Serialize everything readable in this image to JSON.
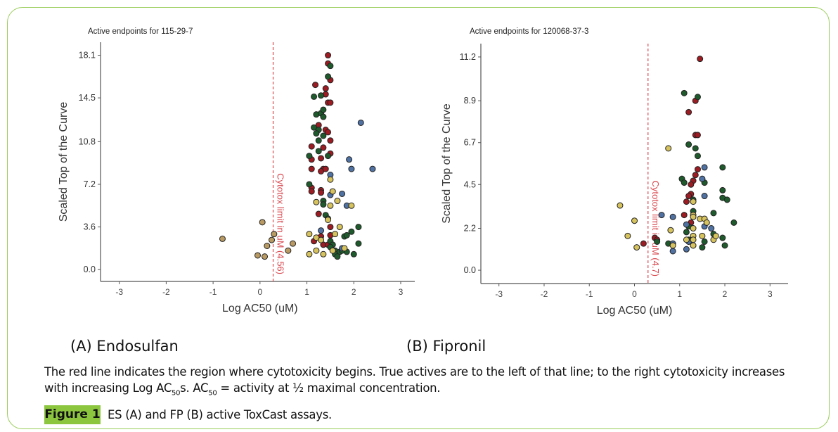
{
  "panels": {
    "a_label": "(A) Endosulfan",
    "b_label": "(B) Fipronil"
  },
  "caption": {
    "line1": "The red line indicates the region where cytotoxicity begins. True actives are to the left of that line; to the right cytotoxicity increases",
    "line2_a": "with increasing Log AC",
    "sub1": "50",
    "line2_b": "s. AC",
    "sub2": "50",
    "line2_c": " = activity at ½ maximal concentration."
  },
  "figure": {
    "badge": "Figure 1",
    "text": "ES (A) and FP (B) active ToxCast assays."
  },
  "colors": {
    "r": "#9b1c22",
    "g": "#1f5a2c",
    "b": "#4f72a3",
    "y": "#d7c35e",
    "t": "#b89a62",
    "cytotox": "#d9484f",
    "accent": "#8cc63f"
  },
  "chart_data": [
    {
      "type": "scatter",
      "title": "Active endpoints for 115-29-7",
      "xlabel": "Log AC50 (uM)",
      "ylabel": "Scaled Top of the Curve",
      "xlim": [
        -3.4,
        3.3
      ],
      "ylim": [
        -1.0,
        19.2
      ],
      "xticks": [
        -3,
        -2,
        -1,
        0,
        1,
        2,
        3
      ],
      "xtick_labels": [
        "-3",
        "-2",
        "-1",
        "0",
        "1",
        "2",
        "3"
      ],
      "yticks": [
        0,
        3.6,
        7.2,
        10.8,
        14.5,
        18.1
      ],
      "ytick_labels": [
        "0.0",
        "3.6",
        "7.2",
        "10.8",
        "14.5",
        "18.1"
      ],
      "cytotox_x": 0.28,
      "cytotox_label": "Cytotox limit in uM (4.56)",
      "points": [
        [
          1.45,
          18.1,
          "r"
        ],
        [
          1.45,
          17.4,
          "r"
        ],
        [
          1.5,
          16.0,
          "r"
        ],
        [
          1.18,
          15.6,
          "r"
        ],
        [
          1.4,
          15.3,
          "r"
        ],
        [
          1.4,
          14.8,
          "r"
        ],
        [
          1.45,
          14.1,
          "r"
        ],
        [
          1.5,
          14.1,
          "r"
        ],
        [
          1.25,
          12.2,
          "r"
        ],
        [
          1.4,
          11.8,
          "r"
        ],
        [
          1.45,
          11.6,
          "r"
        ],
        [
          1.5,
          10.9,
          "r"
        ],
        [
          1.1,
          10.4,
          "r"
        ],
        [
          1.35,
          10.3,
          "r"
        ],
        [
          1.5,
          9.8,
          "r"
        ],
        [
          1.1,
          9.3,
          "r"
        ],
        [
          1.3,
          9.4,
          "r"
        ],
        [
          1.1,
          8.5,
          "r"
        ],
        [
          1.35,
          8.5,
          "r"
        ],
        [
          1.3,
          8.3,
          "r"
        ],
        [
          1.4,
          8.5,
          "r"
        ],
        [
          1.1,
          6.9,
          "r"
        ],
        [
          1.1,
          6.6,
          "r"
        ],
        [
          1.3,
          6.7,
          "r"
        ],
        [
          1.3,
          6.5,
          "r"
        ],
        [
          1.25,
          4.7,
          "r"
        ],
        [
          1.5,
          3.6,
          "r"
        ],
        [
          1.15,
          2.4,
          "r"
        ],
        [
          1.35,
          2.1,
          "r"
        ],
        [
          1.45,
          2.1,
          "r"
        ],
        [
          1.3,
          2.8,
          "r"
        ],
        [
          1.5,
          2.9,
          "r"
        ],
        [
          1.5,
          17.2,
          "g"
        ],
        [
          1.45,
          16.3,
          "g"
        ],
        [
          1.15,
          14.6,
          "g"
        ],
        [
          1.3,
          14.7,
          "g"
        ],
        [
          1.2,
          13.1,
          "g"
        ],
        [
          1.3,
          13.2,
          "g"
        ],
        [
          1.35,
          13.5,
          "g"
        ],
        [
          1.35,
          12.9,
          "g"
        ],
        [
          1.15,
          12.0,
          "g"
        ],
        [
          1.25,
          11.8,
          "g"
        ],
        [
          1.2,
          11.5,
          "g"
        ],
        [
          1.35,
          11.3,
          "g"
        ],
        [
          1.25,
          10.9,
          "g"
        ],
        [
          1.25,
          10.0,
          "g"
        ],
        [
          1.05,
          9.6,
          "g"
        ],
        [
          1.45,
          9.6,
          "g"
        ],
        [
          1.05,
          7.2,
          "g"
        ],
        [
          1.35,
          5.8,
          "g"
        ],
        [
          1.35,
          5.5,
          "g"
        ],
        [
          1.4,
          4.6,
          "g"
        ],
        [
          1.45,
          4.3,
          "g"
        ],
        [
          1.8,
          2.8,
          "g"
        ],
        [
          1.85,
          2.9,
          "g"
        ],
        [
          1.95,
          3.2,
          "g"
        ],
        [
          2.1,
          3.6,
          "g"
        ],
        [
          2.1,
          2.2,
          "g"
        ],
        [
          1.5,
          2.4,
          "g"
        ],
        [
          1.55,
          2.1,
          "g"
        ],
        [
          1.5,
          1.9,
          "g"
        ],
        [
          1.6,
          1.6,
          "g"
        ],
        [
          1.7,
          1.5,
          "g"
        ],
        [
          1.6,
          1.3,
          "g"
        ],
        [
          1.65,
          1.1,
          "g"
        ],
        [
          2.0,
          1.3,
          "g"
        ],
        [
          1.85,
          1.5,
          "g"
        ],
        [
          1.75,
          1.6,
          "g"
        ],
        [
          2.15,
          12.4,
          "b"
        ],
        [
          1.9,
          9.3,
          "b"
        ],
        [
          1.95,
          8.5,
          "b"
        ],
        [
          2.4,
          8.5,
          "b"
        ],
        [
          1.5,
          8.0,
          "b"
        ],
        [
          1.75,
          6.4,
          "b"
        ],
        [
          1.5,
          6.3,
          "b"
        ],
        [
          1.85,
          5.4,
          "b"
        ],
        [
          1.3,
          3.3,
          "b"
        ],
        [
          1.75,
          1.8,
          "b"
        ],
        [
          1.5,
          7.6,
          "y"
        ],
        [
          1.55,
          6.6,
          "y"
        ],
        [
          1.2,
          5.7,
          "y"
        ],
        [
          1.65,
          5.8,
          "y"
        ],
        [
          1.5,
          5.4,
          "y"
        ],
        [
          1.95,
          5.4,
          "y"
        ],
        [
          1.45,
          4.2,
          "y"
        ],
        [
          1.7,
          3.6,
          "y"
        ],
        [
          1.05,
          3.0,
          "y"
        ],
        [
          1.2,
          2.7,
          "y"
        ],
        [
          1.6,
          3.0,
          "y"
        ],
        [
          1.2,
          1.6,
          "y"
        ],
        [
          1.05,
          1.3,
          "y"
        ],
        [
          1.35,
          1.3,
          "y"
        ],
        [
          1.3,
          2.5,
          "y"
        ],
        [
          1.8,
          1.8,
          "y"
        ],
        [
          1.55,
          1.6,
          "y"
        ],
        [
          -0.8,
          2.6,
          "t"
        ],
        [
          0.05,
          4.0,
          "t"
        ],
        [
          0.3,
          3.0,
          "t"
        ],
        [
          0.25,
          2.5,
          "t"
        ],
        [
          0.15,
          2.0,
          "t"
        ],
        [
          0.7,
          2.2,
          "t"
        ],
        [
          0.6,
          1.6,
          "t"
        ],
        [
          -0.05,
          1.2,
          "t"
        ],
        [
          0.1,
          1.1,
          "t"
        ]
      ]
    },
    {
      "type": "scatter",
      "title": "Active endpoints for 120068-37-3",
      "xlabel": "Log AC50 (uM)",
      "ylabel": "Scaled Top of the Curve",
      "xlim": [
        -3.4,
        3.4
      ],
      "ylim": [
        -0.7,
        11.9
      ],
      "xticks": [
        -3,
        -2,
        -1,
        0,
        1,
        2,
        3
      ],
      "xtick_labels": [
        "-3",
        "-2",
        "-1",
        "0",
        "1",
        "2",
        "3"
      ],
      "yticks": [
        0,
        2.2,
        4.5,
        6.7,
        8.9,
        11.2
      ],
      "ytick_labels": [
        "0.0",
        "2.2",
        "4.5",
        "6.7",
        "8.9",
        "11.2"
      ],
      "cytotox_x": 0.3,
      "cytotox_label": "Cytotox limit in uM (4.7)",
      "points": [
        [
          1.45,
          11.1,
          "r"
        ],
        [
          1.35,
          8.9,
          "r"
        ],
        [
          1.2,
          8.3,
          "r"
        ],
        [
          1.35,
          7.1,
          "r"
        ],
        [
          1.4,
          7.1,
          "r"
        ],
        [
          1.4,
          5.3,
          "r"
        ],
        [
          1.35,
          5.0,
          "r"
        ],
        [
          1.3,
          4.7,
          "r"
        ],
        [
          1.25,
          4.5,
          "r"
        ],
        [
          1.25,
          4.0,
          "r"
        ],
        [
          1.2,
          3.9,
          "r"
        ],
        [
          1.15,
          3.6,
          "r"
        ],
        [
          1.1,
          2.9,
          "r"
        ],
        [
          1.25,
          2.5,
          "r"
        ],
        [
          0.2,
          1.4,
          "r"
        ],
        [
          0.45,
          1.7,
          "r"
        ],
        [
          0.5,
          1.6,
          "r"
        ],
        [
          1.3,
          1.3,
          "r"
        ],
        [
          1.1,
          9.3,
          "g"
        ],
        [
          1.4,
          9.1,
          "g"
        ],
        [
          1.2,
          6.6,
          "g"
        ],
        [
          1.35,
          6.4,
          "g"
        ],
        [
          1.4,
          6.0,
          "g"
        ],
        [
          1.95,
          5.4,
          "g"
        ],
        [
          1.05,
          4.8,
          "g"
        ],
        [
          1.1,
          4.6,
          "g"
        ],
        [
          1.55,
          4.6,
          "g"
        ],
        [
          1.95,
          4.2,
          "g"
        ],
        [
          1.95,
          3.8,
          "g"
        ],
        [
          2.05,
          3.7,
          "g"
        ],
        [
          1.3,
          3.7,
          "g"
        ],
        [
          1.3,
          3.1,
          "g"
        ],
        [
          1.75,
          3.0,
          "g"
        ],
        [
          2.2,
          2.5,
          "g"
        ],
        [
          1.2,
          2.3,
          "g"
        ],
        [
          1.15,
          2.0,
          "g"
        ],
        [
          1.75,
          1.9,
          "g"
        ],
        [
          1.95,
          1.7,
          "g"
        ],
        [
          2.0,
          1.3,
          "g"
        ],
        [
          1.55,
          1.5,
          "g"
        ],
        [
          1.5,
          1.2,
          "g"
        ],
        [
          0.5,
          1.5,
          "g"
        ],
        [
          0.75,
          1.4,
          "g"
        ],
        [
          1.2,
          1.6,
          "g"
        ],
        [
          1.55,
          5.4,
          "b"
        ],
        [
          1.5,
          4.8,
          "b"
        ],
        [
          1.55,
          3.9,
          "b"
        ],
        [
          0.6,
          2.9,
          "b"
        ],
        [
          0.85,
          2.8,
          "b"
        ],
        [
          1.15,
          2.4,
          "b"
        ],
        [
          1.55,
          2.3,
          "b"
        ],
        [
          1.7,
          2.2,
          "b"
        ],
        [
          0.85,
          1.4,
          "b"
        ],
        [
          0.85,
          1.0,
          "b"
        ],
        [
          1.15,
          1.1,
          "b"
        ],
        [
          1.2,
          1.5,
          "b"
        ],
        [
          -0.32,
          3.4,
          "y"
        ],
        [
          0.0,
          2.6,
          "y"
        ],
        [
          -0.15,
          1.8,
          "y"
        ],
        [
          0.05,
          1.2,
          "y"
        ],
        [
          0.75,
          6.4,
          "y"
        ],
        [
          0.8,
          2.1,
          "y"
        ],
        [
          1.3,
          3.6,
          "y"
        ],
        [
          1.3,
          2.9,
          "y"
        ],
        [
          1.3,
          2.8,
          "y"
        ],
        [
          1.45,
          2.7,
          "y"
        ],
        [
          1.55,
          2.7,
          "y"
        ],
        [
          1.6,
          2.5,
          "y"
        ],
        [
          1.5,
          1.8,
          "y"
        ],
        [
          1.3,
          1.8,
          "y"
        ],
        [
          1.15,
          1.6,
          "y"
        ],
        [
          1.3,
          1.6,
          "y"
        ],
        [
          1.75,
          1.6,
          "y"
        ],
        [
          1.8,
          1.8,
          "y"
        ],
        [
          1.3,
          1.3,
          "y"
        ],
        [
          0.85,
          1.3,
          "y"
        ],
        [
          1.3,
          2.2,
          "y"
        ]
      ]
    }
  ]
}
